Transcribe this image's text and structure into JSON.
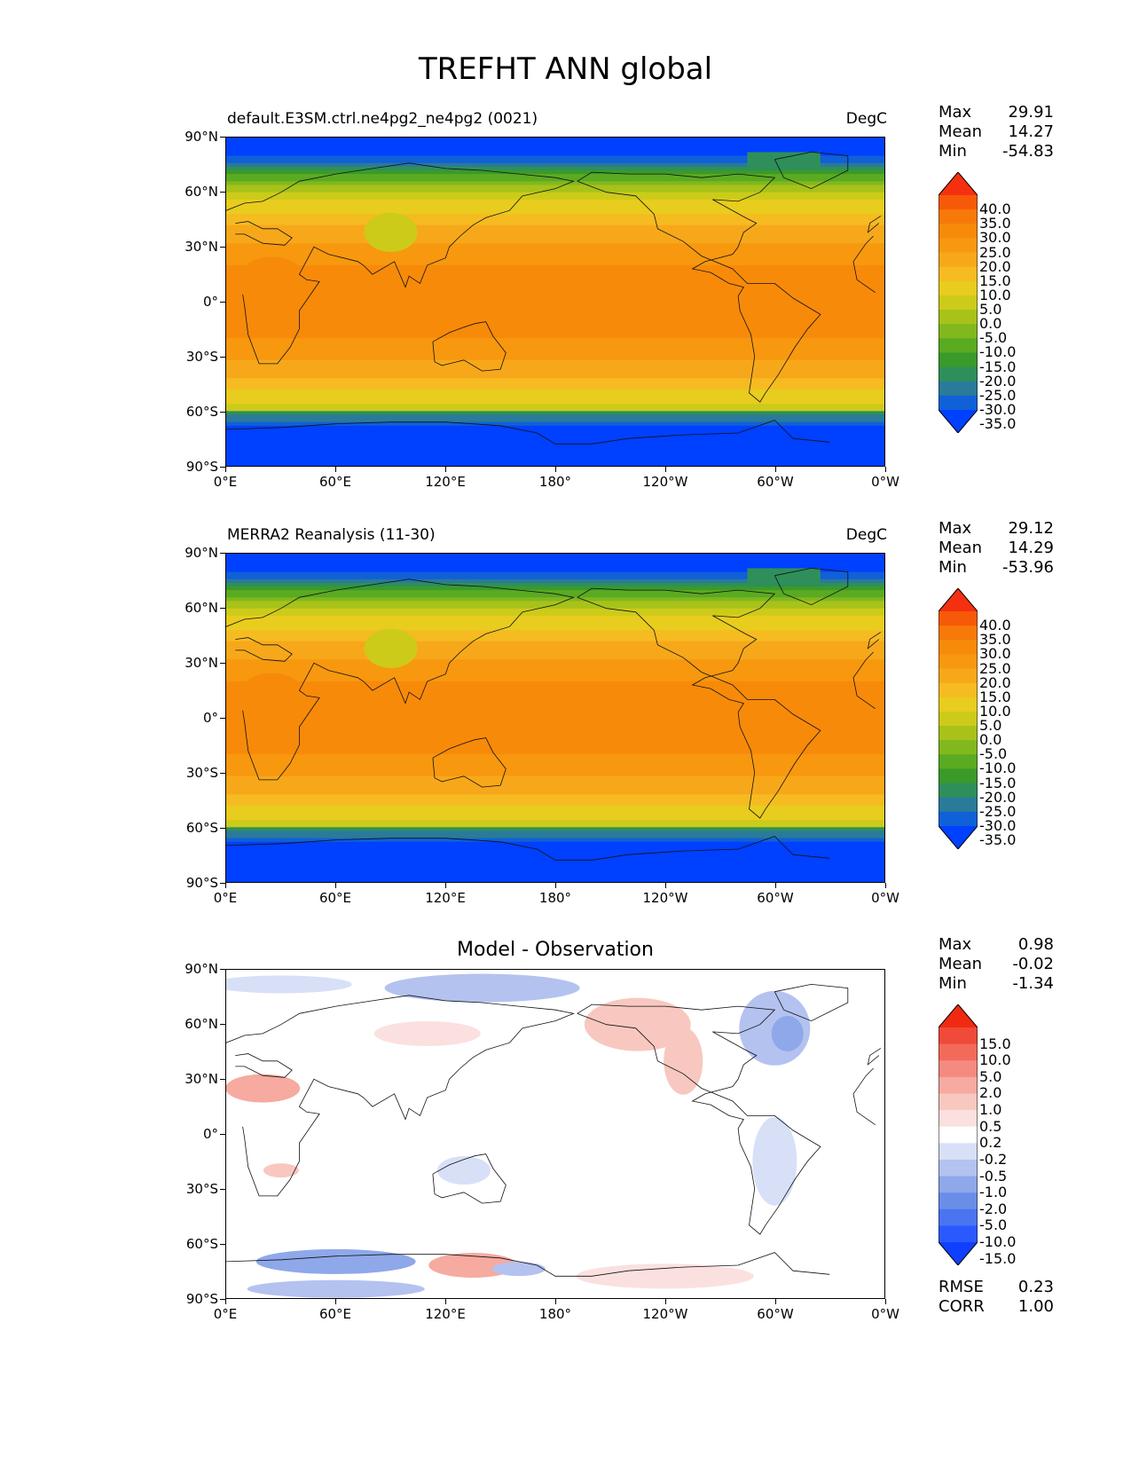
{
  "title": "TREFHT ANN global",
  "panels": [
    {
      "left_title": "default.E3SM.ctrl.ne4pg2_ne4pg2 (0021)",
      "right_title": "DegC",
      "stats": {
        "max_label": "Max",
        "max": "29.91",
        "mean_label": "Mean",
        "mean": "14.27",
        "min_label": "Min",
        "min": "-54.83"
      },
      "colorbar_levels": [
        "40.0",
        "35.0",
        "30.0",
        "25.0",
        "20.0",
        "15.0",
        "10.0",
        "5.0",
        "0.0",
        "-5.0",
        "-10.0",
        "-15.0",
        "-20.0",
        "-25.0",
        "-30.0",
        "-35.0"
      ]
    },
    {
      "left_title": "MERRA2 Reanalysis (11-30)",
      "right_title": "DegC",
      "stats": {
        "max_label": "Max",
        "max": "29.12",
        "mean_label": "Mean",
        "mean": "14.29",
        "min_label": "Min",
        "min": "-53.96"
      },
      "colorbar_levels": [
        "40.0",
        "35.0",
        "30.0",
        "25.0",
        "20.0",
        "15.0",
        "10.0",
        "5.0",
        "0.0",
        "-5.0",
        "-10.0",
        "-15.0",
        "-20.0",
        "-25.0",
        "-30.0",
        "-35.0"
      ]
    },
    {
      "center_title": "Model - Observation",
      "stats": {
        "max_label": "Max",
        "max": "0.98",
        "mean_label": "Mean",
        "mean": "-0.02",
        "min_label": "Min",
        "min": "-1.34"
      },
      "colorbar_levels": [
        "15.0",
        "10.0",
        "5.0",
        "2.0",
        "1.0",
        "0.5",
        "0.2",
        "-0.2",
        "-0.5",
        "-1.0",
        "-2.0",
        "-5.0",
        "-10.0",
        "-15.0"
      ],
      "metrics": {
        "rmse_label": "RMSE",
        "rmse": "0.23",
        "corr_label": "CORR",
        "corr": "1.00"
      }
    }
  ],
  "lat_labels": [
    "90°N",
    "60°N",
    "30°N",
    "0°",
    "30°S",
    "60°S",
    "90°S"
  ],
  "lon_labels": [
    "0°E",
    "60°E",
    "120°E",
    "180°",
    "120°W",
    "60°W",
    "0°W"
  ],
  "colors": {
    "temp_scale": [
      "#0040ff",
      "#1060d8",
      "#2a7a9a",
      "#2f8f5a",
      "#3a9a2a",
      "#5aaa22",
      "#80b81e",
      "#a8c21a",
      "#cccb1a",
      "#e8cc1e",
      "#f5bb20",
      "#f7a81a",
      "#f8980f",
      "#f88a0a",
      "#f77a08",
      "#f65a08",
      "#f53010"
    ],
    "diff_scale": [
      "#1040ff",
      "#2a5aff",
      "#4a74f0",
      "#6a8ee8",
      "#8ea8ea",
      "#b4c2f0",
      "#d8e0f8",
      "#ffffff",
      "#fbe0e0",
      "#f8c8c0",
      "#f6aaa0",
      "#f48a80",
      "#f26a5a",
      "#f04a3a",
      "#f02a10"
    ]
  }
}
